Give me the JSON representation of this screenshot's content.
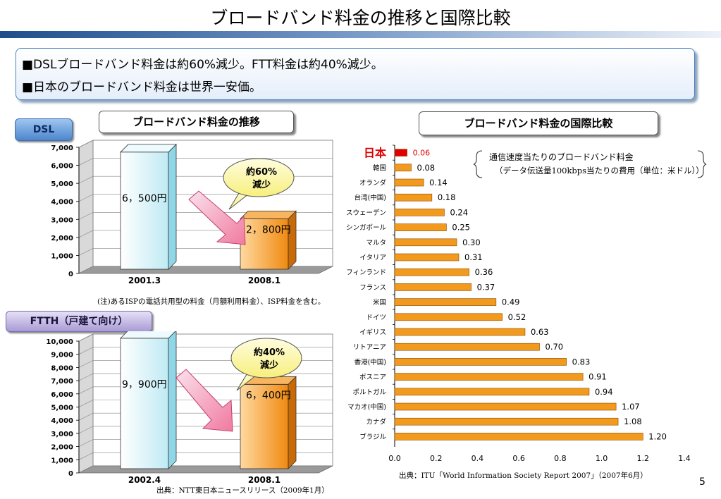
{
  "title": "ブロードバンド料金の推移と国際比較",
  "summary": [
    "■DSLブロードバンド料金は約60%減少。FTT料金は約40%減少。",
    "■日本のブロードバンド料金は世界一安価。"
  ],
  "dsl_tag": "DSL",
  "ftth_tag": "FTTH（戸建て向け）",
  "trend_title": "ブロードバンド料金の推移",
  "intl_title": "ブロードバンド料金の国際比較",
  "dsl_note": "(注)あるISPの電話共用型の料金（月額利用料金）、ISP料金を含む。",
  "ftth_source": "出典：NTT東日本ニュースリリース（2009年1月）",
  "intl_note_1": "通信速度当たりのブロードバンド料金",
  "intl_note_2": "（データ伝送量100kbps当たりの費用（単位：米ドル））",
  "intl_source": "出典：ITU「World Information Society Report 2007」（2007年6月）",
  "page_number": "5",
  "colors": {
    "orange": "#f29a1e",
    "japan_red": "#e00000",
    "cyan_bar": "#d8f3fa"
  },
  "chart_data": [
    {
      "type": "bar",
      "name": "DSL",
      "categories": [
        "2001.3",
        "2008.1"
      ],
      "values": [
        6500,
        2800
      ],
      "value_labels": [
        "6，500円",
        "2，800円"
      ],
      "ylim": [
        0,
        7000
      ],
      "yticks": [
        "0",
        "1,000",
        "2,000",
        "3,000",
        "4,000",
        "5,000",
        "6,000",
        "7,000"
      ],
      "callout": [
        "約60%",
        "減少"
      ]
    },
    {
      "type": "bar",
      "name": "FTTH",
      "categories": [
        "2002.4",
        "2008.1"
      ],
      "values": [
        9900,
        6400
      ],
      "value_labels": [
        "9，900円",
        "6，400円"
      ],
      "ylim": [
        0,
        10000
      ],
      "yticks": [
        "0",
        "1,000",
        "2,000",
        "3,000",
        "4,000",
        "5,000",
        "6,000",
        "7,000",
        "8,000",
        "9,000",
        "10,000"
      ],
      "callout": [
        "約40%",
        "減少"
      ]
    },
    {
      "type": "bar",
      "orientation": "horizontal",
      "categories": [
        "日本",
        "韓国",
        "オランダ",
        "台湾(中国)",
        "スウェーデン",
        "シンガポール",
        "マルタ",
        "イタリア",
        "フィンランド",
        "フランス",
        "米国",
        "ドイツ",
        "イギリス",
        "リトアニア",
        "香港(中国)",
        "ボスニア",
        "ポルトガル",
        "マカオ(中国)",
        "カナダ",
        "ブラジル"
      ],
      "values": [
        0.06,
        0.08,
        0.14,
        0.18,
        0.24,
        0.25,
        0.3,
        0.31,
        0.36,
        0.37,
        0.49,
        0.52,
        0.63,
        0.7,
        0.83,
        0.91,
        0.94,
        1.07,
        1.08,
        1.2
      ],
      "value_labels": [
        "0.06",
        "0.08",
        "0.14",
        "0.18",
        "0.24",
        "0.25",
        "0.30",
        "0.31",
        "0.36",
        "0.37",
        "0.49",
        "0.52",
        "0.63",
        "0.70",
        "0.83",
        "0.91",
        "0.94",
        "1.07",
        "1.08",
        "1.20"
      ],
      "xlim": [
        0,
        1.4
      ],
      "xticks": [
        "0.0",
        "0.2",
        "0.4",
        "0.6",
        "0.8",
        "1.0",
        "1.2",
        "1.4"
      ]
    }
  ]
}
